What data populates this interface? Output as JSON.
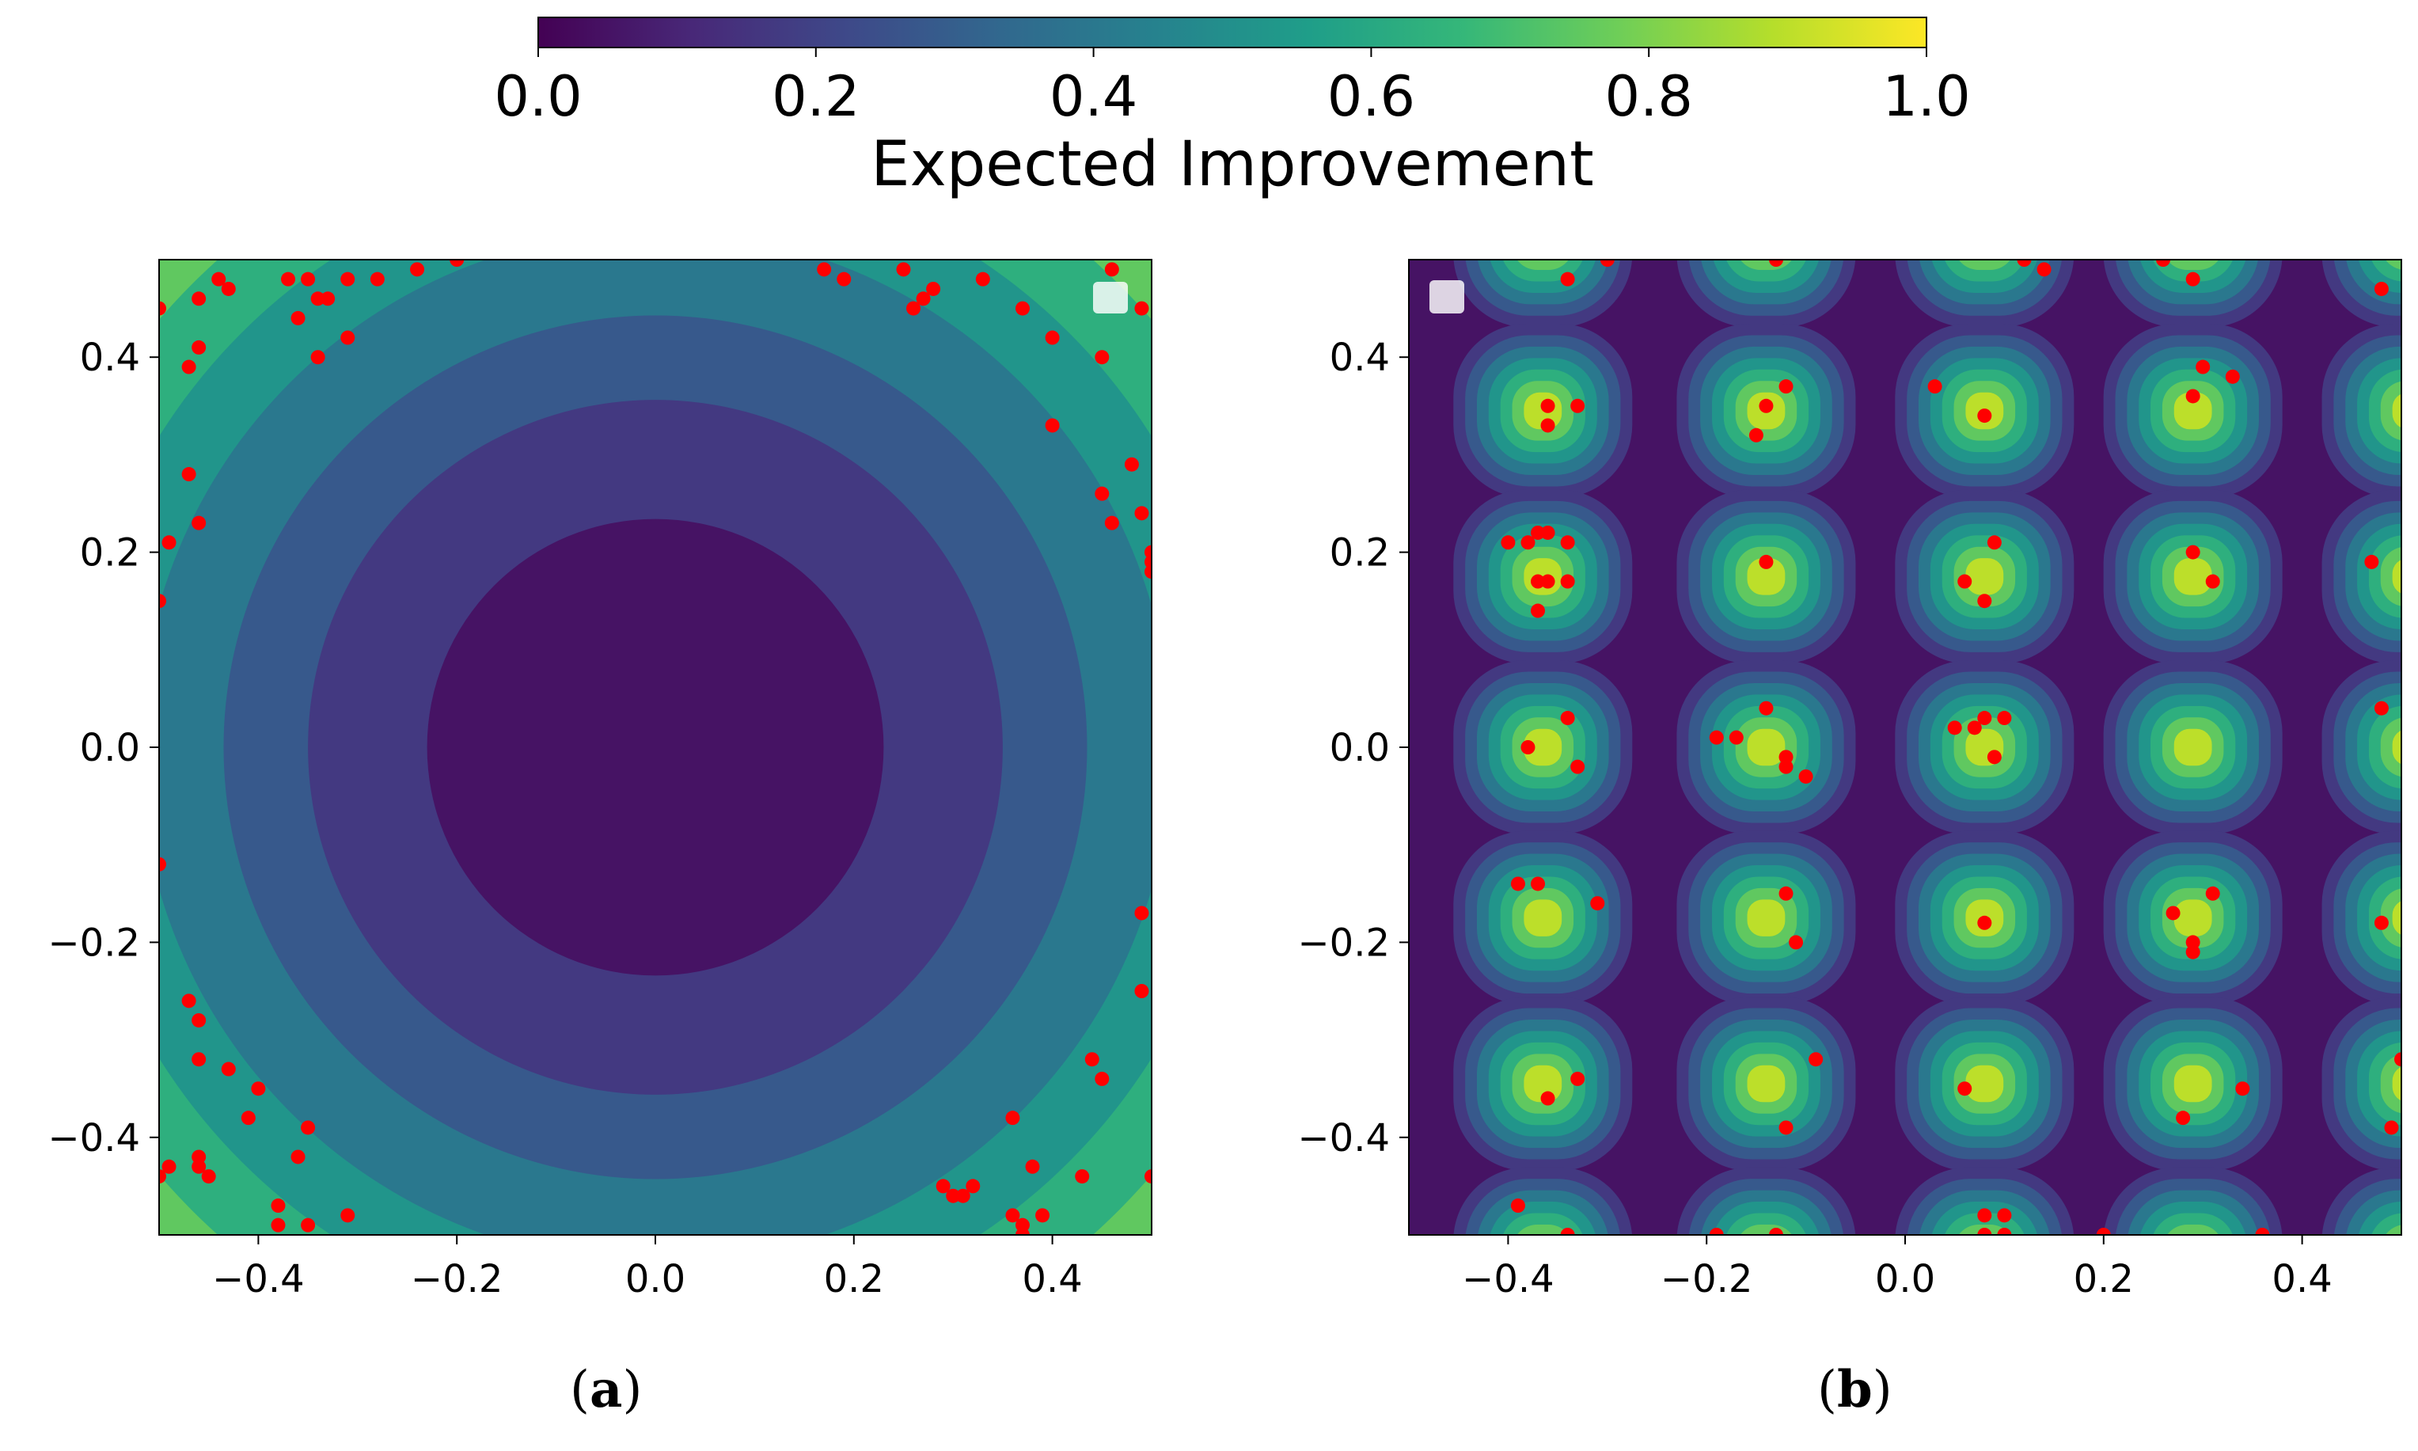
{
  "colorbar": {
    "label": "Expected Improvement",
    "ticks": [
      "0.0",
      "0.2",
      "0.4",
      "0.6",
      "0.8",
      "1.0"
    ],
    "range": [
      0,
      1
    ],
    "colormap": [
      "#440154",
      "#482878",
      "#3e4989",
      "#31688e",
      "#26828e",
      "#1f9e89",
      "#35b779",
      "#6ece58",
      "#b5de2b",
      "#fde725"
    ]
  },
  "panels": {
    "a": {
      "caption_open": "(",
      "caption_letter": "a",
      "caption_close": ")"
    },
    "b": {
      "caption_open": "(",
      "caption_letter": "b",
      "caption_close": ")"
    }
  },
  "chart_data": [
    {
      "type": "heatmap",
      "panel": "a",
      "title": "",
      "xlabel": "",
      "ylabel": "",
      "xlim": [
        -0.5,
        0.5
      ],
      "ylim": [
        -0.5,
        0.5
      ],
      "xticks": [
        -0.4,
        -0.2,
        0.0,
        0.2,
        0.4
      ],
      "yticks": [
        -0.4,
        -0.2,
        0.0,
        0.2,
        0.4
      ],
      "xtick_labels": [
        "−0.4",
        "−0.2",
        "0.0",
        "0.2",
        "0.4"
      ],
      "ytick_labels": [
        "−0.4",
        "−0.2",
        "0.0",
        "0.2",
        "0.4"
      ],
      "surface": "radial",
      "contour_levels": [
        0.23,
        0.35,
        0.435,
        0.52,
        0.59,
        0.66,
        0.72
      ],
      "level_values": [
        0.05,
        0.17,
        0.28,
        0.4,
        0.52,
        0.63,
        0.75,
        0.9
      ],
      "legend": {
        "placement": "top-right",
        "entries": [
          ""
        ]
      },
      "points": [
        [
          -0.44,
          0.48
        ],
        [
          -0.43,
          0.47
        ],
        [
          -0.46,
          0.46
        ],
        [
          -0.37,
          0.48
        ],
        [
          -0.35,
          0.48
        ],
        [
          -0.36,
          0.44
        ],
        [
          -0.34,
          0.46
        ],
        [
          -0.33,
          0.46
        ],
        [
          -0.31,
          0.48
        ],
        [
          -0.28,
          0.48
        ],
        [
          -0.24,
          0.49
        ],
        [
          -0.2,
          0.5
        ],
        [
          -0.5,
          0.45
        ],
        [
          -0.46,
          0.41
        ],
        [
          -0.47,
          0.39
        ],
        [
          -0.34,
          0.4
        ],
        [
          -0.31,
          0.42
        ],
        [
          0.17,
          0.49
        ],
        [
          0.19,
          0.48
        ],
        [
          0.25,
          0.49
        ],
        [
          0.28,
          0.47
        ],
        [
          0.26,
          0.45
        ],
        [
          0.27,
          0.46
        ],
        [
          0.33,
          0.48
        ],
        [
          0.37,
          0.45
        ],
        [
          0.4,
          0.42
        ],
        [
          0.46,
          0.49
        ],
        [
          0.49,
          0.45
        ],
        [
          0.45,
          0.4
        ],
        [
          0.4,
          0.33
        ],
        [
          0.48,
          0.29
        ],
        [
          0.45,
          0.26
        ],
        [
          0.49,
          0.24
        ],
        [
          0.46,
          0.23
        ],
        [
          0.5,
          0.2
        ],
        [
          0.5,
          0.19
        ],
        [
          0.5,
          0.18
        ],
        [
          -0.47,
          0.28
        ],
        [
          -0.46,
          0.23
        ],
        [
          -0.49,
          0.21
        ],
        [
          -0.5,
          0.15
        ],
        [
          -0.5,
          -0.12
        ],
        [
          -0.47,
          -0.26
        ],
        [
          -0.46,
          -0.28
        ],
        [
          -0.46,
          -0.32
        ],
        [
          -0.43,
          -0.33
        ],
        [
          -0.4,
          -0.35
        ],
        [
          -0.41,
          -0.38
        ],
        [
          -0.35,
          -0.39
        ],
        [
          -0.36,
          -0.42
        ],
        [
          -0.46,
          -0.42
        ],
        [
          -0.46,
          -0.43
        ],
        [
          -0.49,
          -0.43
        ],
        [
          -0.5,
          -0.44
        ],
        [
          -0.45,
          -0.44
        ],
        [
          -0.38,
          -0.47
        ],
        [
          -0.38,
          -0.49
        ],
        [
          -0.35,
          -0.49
        ],
        [
          -0.31,
          -0.48
        ],
        [
          0.29,
          -0.45
        ],
        [
          0.3,
          -0.46
        ],
        [
          0.31,
          -0.46
        ],
        [
          0.32,
          -0.45
        ],
        [
          0.36,
          -0.38
        ],
        [
          0.38,
          -0.43
        ],
        [
          0.36,
          -0.48
        ],
        [
          0.37,
          -0.49
        ],
        [
          0.37,
          -0.5
        ],
        [
          0.43,
          -0.44
        ],
        [
          0.44,
          -0.32
        ],
        [
          0.45,
          -0.34
        ],
        [
          0.49,
          -0.25
        ],
        [
          0.49,
          -0.17
        ],
        [
          0.5,
          -0.44
        ],
        [
          0.39,
          -0.48
        ]
      ],
      "point_color": "#ff0000"
    },
    {
      "type": "heatmap",
      "panel": "b",
      "title": "",
      "xlabel": "",
      "ylabel": "",
      "xlim": [
        -0.5,
        0.5
      ],
      "ylim": [
        -0.5,
        0.5
      ],
      "xticks": [
        -0.4,
        -0.2,
        0.0,
        0.2,
        0.4
      ],
      "yticks": [
        -0.4,
        -0.2,
        0.0,
        0.2,
        0.4
      ],
      "xtick_labels": [
        "−0.4",
        "−0.2",
        "0.0",
        "0.2",
        "0.4"
      ],
      "ytick_labels": [
        "−0.4",
        "−0.2",
        "0.0",
        "0.2",
        "0.4"
      ],
      "surface": "periodic",
      "cell_centers_x": [
        -0.365,
        -0.14,
        0.08,
        0.29,
        0.51
      ],
      "cell_centers_y": [
        0.52,
        0.345,
        0.175,
        0.0,
        -0.175,
        -0.345,
        -0.52
      ],
      "contour_levels": [
        0.12,
        0.2,
        0.28,
        0.37,
        0.46,
        0.55,
        0.65
      ],
      "level_values": [
        0.05,
        0.17,
        0.28,
        0.4,
        0.52,
        0.63,
        0.75,
        0.9
      ],
      "legend": {
        "placement": "top-left",
        "entries": [
          ""
        ]
      },
      "points": [
        [
          -0.34,
          0.48
        ],
        [
          -0.3,
          0.5
        ],
        [
          -0.13,
          0.5
        ],
        [
          0.12,
          0.5
        ],
        [
          0.14,
          0.49
        ],
        [
          0.26,
          0.5
        ],
        [
          0.29,
          0.48
        ],
        [
          0.48,
          0.47
        ],
        [
          -0.36,
          0.35
        ],
        [
          -0.36,
          0.33
        ],
        [
          -0.33,
          0.35
        ],
        [
          -0.15,
          0.32
        ],
        [
          -0.14,
          0.35
        ],
        [
          -0.12,
          0.37
        ],
        [
          0.03,
          0.37
        ],
        [
          0.08,
          0.34
        ],
        [
          0.29,
          0.36
        ],
        [
          0.3,
          0.39
        ],
        [
          0.33,
          0.38
        ],
        [
          -0.4,
          0.21
        ],
        [
          -0.38,
          0.21
        ],
        [
          -0.37,
          0.22
        ],
        [
          -0.36,
          0.22
        ],
        [
          -0.34,
          0.21
        ],
        [
          -0.37,
          0.17
        ],
        [
          -0.36,
          0.17
        ],
        [
          -0.34,
          0.17
        ],
        [
          -0.37,
          0.14
        ],
        [
          -0.14,
          0.19
        ],
        [
          0.06,
          0.17
        ],
        [
          0.08,
          0.15
        ],
        [
          0.09,
          0.21
        ],
        [
          0.29,
          0.2
        ],
        [
          0.31,
          0.17
        ],
        [
          0.47,
          0.19
        ],
        [
          -0.34,
          0.03
        ],
        [
          -0.38,
          0.0
        ],
        [
          -0.33,
          -0.02
        ],
        [
          -0.19,
          0.01
        ],
        [
          -0.17,
          0.01
        ],
        [
          -0.14,
          0.04
        ],
        [
          -0.12,
          -0.02
        ],
        [
          -0.12,
          -0.01
        ],
        [
          -0.1,
          -0.03
        ],
        [
          0.05,
          0.02
        ],
        [
          0.07,
          0.02
        ],
        [
          0.08,
          0.03
        ],
        [
          0.1,
          0.03
        ],
        [
          0.09,
          -0.01
        ],
        [
          0.48,
          0.04
        ],
        [
          -0.39,
          -0.14
        ],
        [
          -0.37,
          -0.14
        ],
        [
          -0.31,
          -0.16
        ],
        [
          -0.12,
          -0.15
        ],
        [
          -0.11,
          -0.2
        ],
        [
          0.08,
          -0.18
        ],
        [
          0.27,
          -0.17
        ],
        [
          0.29,
          -0.2
        ],
        [
          0.29,
          -0.21
        ],
        [
          0.31,
          -0.15
        ],
        [
          0.48,
          -0.18
        ],
        [
          -0.36,
          -0.36
        ],
        [
          -0.33,
          -0.34
        ],
        [
          -0.12,
          -0.39
        ],
        [
          -0.09,
          -0.32
        ],
        [
          0.06,
          -0.35
        ],
        [
          0.28,
          -0.38
        ],
        [
          0.34,
          -0.35
        ],
        [
          0.49,
          -0.39
        ],
        [
          0.5,
          -0.32
        ],
        [
          -0.39,
          -0.47
        ],
        [
          -0.34,
          -0.5
        ],
        [
          -0.19,
          -0.5
        ],
        [
          -0.13,
          -0.5
        ],
        [
          0.08,
          -0.48
        ],
        [
          0.08,
          -0.5
        ],
        [
          0.1,
          -0.48
        ],
        [
          0.1,
          -0.5
        ],
        [
          0.2,
          -0.5
        ],
        [
          0.36,
          -0.5
        ]
      ],
      "point_color": "#ff0000"
    }
  ]
}
